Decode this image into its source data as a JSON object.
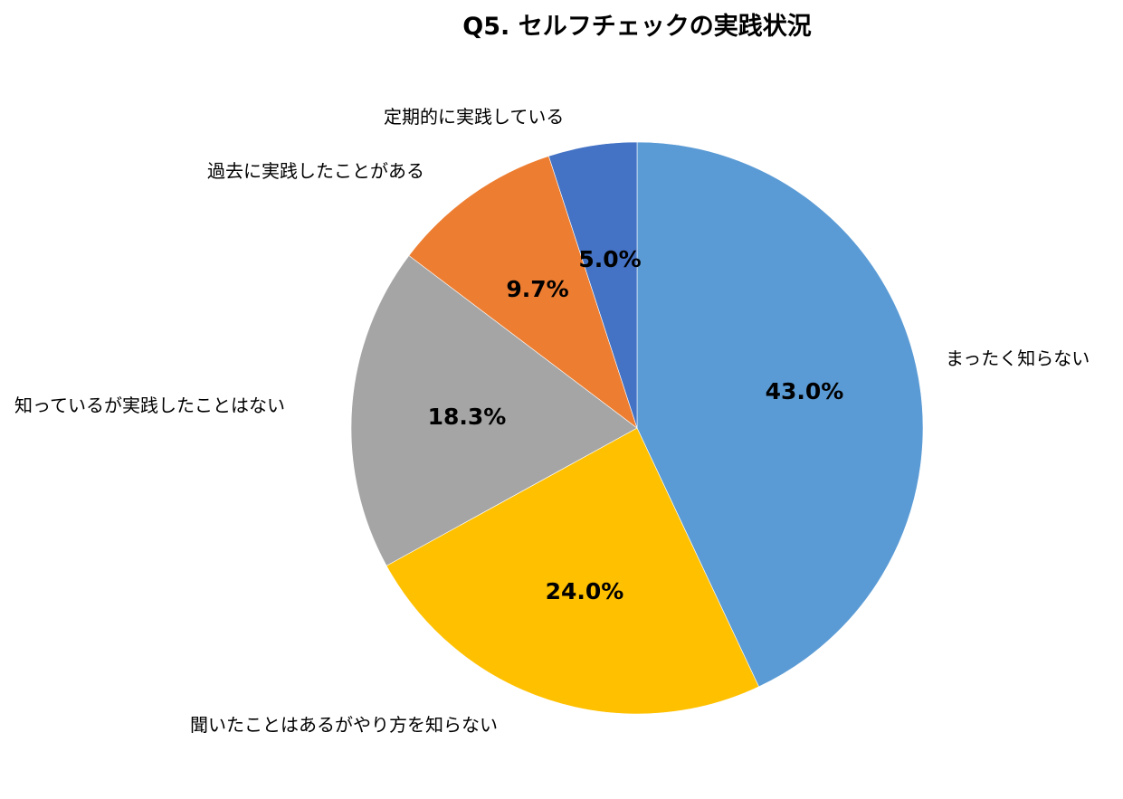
{
  "chart_data": {
    "type": "pie",
    "title": "Q5. セルフチェックの実践状況",
    "start_angle_deg": 0,
    "direction": "clockwise",
    "legend": "none",
    "slices": [
      {
        "label": "まったく知らない",
        "value": 43.0,
        "value_label": "43.0%",
        "color": "#5B9BD5"
      },
      {
        "label": "聞いたことはあるがやり方を知らない",
        "value": 24.0,
        "value_label": "24.0%",
        "color": "#FFC000"
      },
      {
        "label": "知っているが実践したことはない",
        "value": 18.3,
        "value_label": "18.3%",
        "color": "#A5A5A5"
      },
      {
        "label": "過去に実践したことがある",
        "value": 9.7,
        "value_label": "9.7%",
        "color": "#ED7D31"
      },
      {
        "label": "定期的に実践している",
        "value": 5.0,
        "value_label": "5.0%",
        "color": "#4472C4"
      }
    ]
  }
}
